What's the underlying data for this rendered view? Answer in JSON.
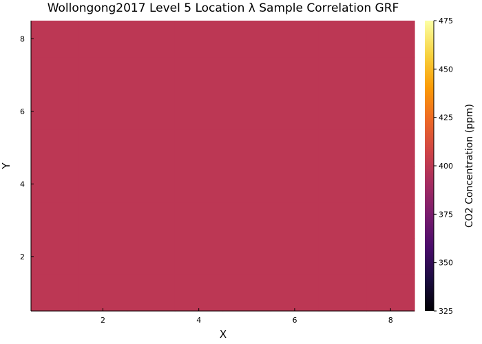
{
  "chart_data": {
    "type": "heatmap",
    "title": "Wollongong2017 Level 5 Location λ Sample Correlation GRF",
    "xlabel": "X",
    "ylabel": "Y",
    "xlim": [
      0.5,
      8.5
    ],
    "ylim": [
      0.5,
      8.5
    ],
    "x_ticks": [
      2,
      4,
      6,
      8
    ],
    "y_ticks": [
      2,
      4,
      6,
      8
    ],
    "colorbar": {
      "label": "CO2 Concentration (ppm)",
      "range": [
        325,
        475
      ],
      "ticks": [
        325,
        350,
        375,
        400,
        425,
        450,
        475
      ],
      "colormap": "inferno"
    },
    "x": [
      1,
      2,
      3,
      4,
      5,
      6,
      7,
      8
    ],
    "y": [
      1,
      2,
      3,
      4,
      5,
      6,
      7,
      8
    ],
    "z": [
      [
        406,
        406,
        406,
        406,
        406,
        406,
        406,
        406
      ],
      [
        406,
        406,
        406,
        406,
        406,
        406,
        406,
        406
      ],
      [
        406,
        406,
        406,
        406,
        406,
        406,
        406,
        406
      ],
      [
        406,
        406,
        406,
        406,
        406,
        406,
        406,
        406
      ],
      [
        406,
        406,
        406,
        406,
        406,
        406,
        406,
        406
      ],
      [
        406,
        406,
        406,
        406,
        406,
        406,
        406,
        406
      ],
      [
        406,
        406,
        406,
        406,
        406,
        406,
        406,
        406
      ],
      [
        406,
        406,
        406,
        406,
        406,
        406,
        406,
        406
      ]
    ],
    "grid": false,
    "legend": "none"
  },
  "colors": {
    "cell": "#bc3754",
    "axis": "#000000",
    "background": "#ffffff"
  }
}
